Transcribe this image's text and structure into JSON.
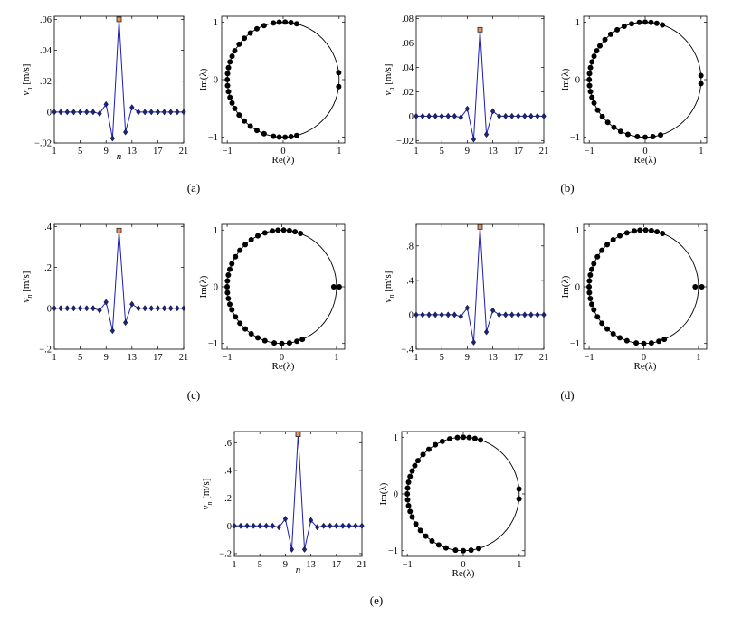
{
  "panel_labels": [
    "(a)",
    "(b)",
    "(c)",
    "(d)",
    "(e)"
  ],
  "chart_data": [
    {
      "panel": "(a)",
      "type": "line",
      "xlabel": "n",
      "ylabel": "v_n [m/s]",
      "x_ticks": [
        1,
        5,
        9,
        13,
        17,
        21
      ],
      "y_ticks": [
        -0.02,
        0,
        0.02,
        0.04,
        0.06
      ],
      "xlim": [
        1,
        21
      ],
      "ylim": [
        -0.02,
        0.062
      ],
      "series": [
        {
          "x": [
            1,
            2,
            3,
            4,
            5,
            6,
            7,
            8,
            9,
            10,
            11,
            12,
            13,
            14,
            15,
            16,
            17,
            18,
            19,
            20,
            21
          ],
          "y": [
            0,
            0,
            0,
            0,
            0,
            0,
            0,
            -0.001,
            0.005,
            -0.017,
            0.06,
            -0.013,
            0.003,
            0,
            0,
            0,
            0,
            0,
            0,
            0,
            0
          ],
          "color": "#1c1cb4",
          "marker": "diamond",
          "highlight_index": 10
        }
      ]
    },
    {
      "panel": "(a)",
      "type": "scatter",
      "xlabel": "Re(λ)",
      "ylabel": "Im(λ)",
      "x_ticks": [
        -1,
        0,
        1
      ],
      "y_ticks": [
        -1,
        0,
        1
      ],
      "xlim": [
        -1.1,
        1.1
      ],
      "ylim": [
        -1.1,
        1.1
      ],
      "unit_circle": true,
      "angles_deg": [
        7,
        -7,
        76,
        82,
        88,
        94,
        100,
        110,
        118,
        126,
        134,
        142,
        150,
        156,
        162,
        168,
        174,
        180,
        186,
        192,
        198,
        204,
        210,
        218,
        226,
        234,
        242,
        250,
        260,
        266,
        272,
        278,
        284
      ],
      "radii_deg_map": {}
    },
    {
      "panel": "(b)",
      "type": "line",
      "xlabel": "",
      "ylabel": "v_n [m/s]",
      "x_ticks": [
        1,
        5,
        9,
        13,
        17,
        21
      ],
      "y_ticks": [
        -0.02,
        0,
        0.02,
        0.04,
        0.06,
        0.08
      ],
      "xlim": [
        1,
        21
      ],
      "ylim": [
        -0.022,
        0.082
      ],
      "series": [
        {
          "x": [
            1,
            2,
            3,
            4,
            5,
            6,
            7,
            8,
            9,
            10,
            11,
            12,
            13,
            14,
            15,
            16,
            17,
            18,
            19,
            20,
            21
          ],
          "y": [
            0,
            0,
            0,
            0,
            0,
            0,
            0,
            -0.001,
            0.006,
            -0.019,
            0.071,
            -0.015,
            0.004,
            0,
            0,
            0,
            0,
            0,
            0,
            0,
            0
          ],
          "color": "#1c1cb4",
          "marker": "diamond",
          "highlight_index": 10
        }
      ]
    },
    {
      "panel": "(b)",
      "type": "scatter",
      "xlabel": "Re(λ)",
      "ylabel": "Im(λ)",
      "x_ticks": [
        -1,
        0,
        1
      ],
      "y_ticks": [
        -1,
        0,
        1
      ],
      "xlim": [
        -1.1,
        1.1
      ],
      "ylim": [
        -1.1,
        1.1
      ],
      "unit_circle": true,
      "angles_deg": [
        4,
        -4,
        72,
        78,
        84,
        90,
        96,
        104,
        112,
        120,
        128,
        136,
        144,
        150,
        156,
        162,
        168,
        174,
        180,
        186,
        192,
        198,
        204,
        212,
        220,
        228,
        236,
        244,
        252,
        262,
        270,
        278,
        286
      ],
      "radii_deg_map": {}
    },
    {
      "panel": "(c)",
      "type": "line",
      "xlabel": "",
      "ylabel": "v_n [m/s]",
      "x_ticks": [
        1,
        5,
        9,
        13,
        17,
        21
      ],
      "y_ticks": [
        -0.2,
        0,
        0.2,
        0.4
      ],
      "xlim": [
        1,
        21
      ],
      "ylim": [
        -0.2,
        0.41
      ],
      "series": [
        {
          "x": [
            1,
            2,
            3,
            4,
            5,
            6,
            7,
            8,
            9,
            10,
            11,
            12,
            13,
            14,
            15,
            16,
            17,
            18,
            19,
            20,
            21
          ],
          "y": [
            0,
            0,
            0,
            0,
            0,
            0,
            0,
            -0.01,
            0.03,
            -0.11,
            0.38,
            -0.07,
            0.02,
            0,
            0,
            0,
            0,
            0,
            0,
            0,
            0
          ],
          "color": "#1c1cb4",
          "marker": "diamond",
          "highlight_index": 10
        }
      ]
    },
    {
      "panel": "(c)",
      "type": "scatter",
      "xlabel": "Re(λ)",
      "ylabel": "Im(λ)",
      "x_ticks": [
        -1,
        0,
        1
      ],
      "y_ticks": [
        -1,
        0,
        1
      ],
      "xlim": [
        -1.1,
        1.15
      ],
      "ylim": [
        -1.1,
        1.1
      ],
      "unit_circle": true,
      "extra_points": [
        [
          0.95,
          0
        ],
        [
          1.05,
          0
        ]
      ],
      "angles_deg": [
        70,
        76,
        82,
        88,
        94,
        100,
        108,
        116,
        124,
        132,
        140,
        148,
        156,
        162,
        168,
        174,
        180,
        186,
        192,
        198,
        204,
        212,
        220,
        228,
        236,
        244,
        252,
        262,
        270,
        278,
        286,
        292
      ],
      "radii_deg_map": {}
    },
    {
      "panel": "(d)",
      "type": "line",
      "xlabel": "",
      "ylabel": "v_n [m/s]",
      "x_ticks": [
        1,
        5,
        9,
        13,
        17,
        21
      ],
      "y_ticks": [
        -0.4,
        0,
        0.4,
        0.8
      ],
      "xlim": [
        1,
        21
      ],
      "ylim": [
        -0.4,
        1.05
      ],
      "series": [
        {
          "x": [
            1,
            2,
            3,
            4,
            5,
            6,
            7,
            8,
            9,
            10,
            11,
            12,
            13,
            14,
            15,
            16,
            17,
            18,
            19,
            20,
            21
          ],
          "y": [
            0,
            0,
            0,
            0,
            0,
            0,
            0,
            -0.02,
            0.08,
            -0.32,
            1.02,
            -0.2,
            0.05,
            0,
            0,
            0,
            0,
            0,
            0,
            0,
            0
          ],
          "color": "#1c1cb4",
          "marker": "diamond",
          "highlight_index": 10
        }
      ]
    },
    {
      "panel": "(d)",
      "type": "scatter",
      "xlabel": "Re(λ)",
      "ylabel": "Im(λ)",
      "x_ticks": [
        -1,
        0,
        1
      ],
      "y_ticks": [
        -1,
        0,
        1
      ],
      "xlim": [
        -1.1,
        1.15
      ],
      "ylim": [
        -1.1,
        1.1
      ],
      "unit_circle": true,
      "extra_points": [
        [
          0.94,
          0
        ],
        [
          1.06,
          0
        ]
      ],
      "angles_deg": [
        70,
        76,
        82,
        88,
        94,
        100,
        108,
        116,
        124,
        132,
        140,
        148,
        156,
        162,
        168,
        174,
        180,
        186,
        192,
        198,
        204,
        212,
        220,
        228,
        236,
        244,
        252,
        262,
        270,
        278,
        286,
        292
      ],
      "radii_deg_map": {}
    },
    {
      "panel": "(e)",
      "type": "line",
      "xlabel": "n",
      "ylabel": "v_n [m/s]",
      "x_ticks": [
        1,
        5,
        9,
        13,
        17,
        21
      ],
      "y_ticks": [
        -0.2,
        0,
        0.2,
        0.4,
        0.6
      ],
      "xlim": [
        1,
        21
      ],
      "ylim": [
        -0.22,
        0.68
      ],
      "series": [
        {
          "x": [
            1,
            2,
            3,
            4,
            5,
            6,
            7,
            8,
            9,
            10,
            11,
            12,
            13,
            14,
            15,
            16,
            17,
            18,
            19,
            20,
            21
          ],
          "y": [
            0,
            0,
            0,
            0,
            0,
            0,
            0,
            -0.01,
            0.05,
            -0.17,
            0.66,
            -0.17,
            0.04,
            -0.01,
            0,
            0,
            0,
            0,
            0,
            0,
            0
          ],
          "color": "#1c1cb4",
          "marker": "diamond",
          "highlight_index": 10
        }
      ]
    },
    {
      "panel": "(e)",
      "type": "scatter",
      "xlabel": "Re(λ)",
      "ylabel": "Im(λ)",
      "x_ticks": [
        -1,
        0,
        1
      ],
      "y_ticks": [
        -1,
        0,
        1
      ],
      "xlim": [
        -1.1,
        1.1
      ],
      "ylim": [
        -1.1,
        1.1
      ],
      "unit_circle": true,
      "angles_deg": [
        5,
        -5,
        72,
        78,
        84,
        90,
        96,
        104,
        112,
        120,
        128,
        136,
        144,
        150,
        156,
        162,
        168,
        174,
        180,
        186,
        192,
        198,
        204,
        212,
        220,
        228,
        236,
        244,
        252,
        262,
        270,
        278,
        286
      ],
      "radii_deg_map": {}
    }
  ]
}
